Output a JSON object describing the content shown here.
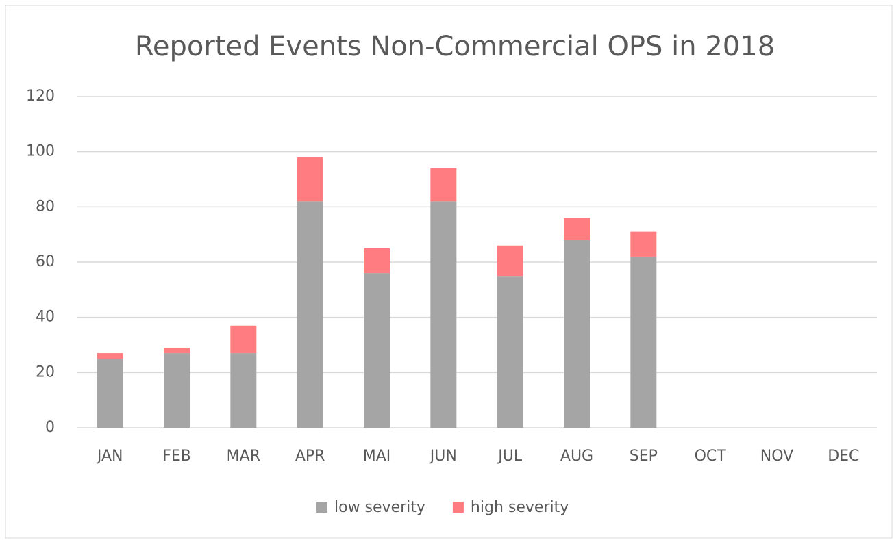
{
  "chart_data": {
    "type": "stacked_bar",
    "title": "Reported Events Non-Commercial OPS in 2018",
    "categories": [
      "JAN",
      "FEB",
      "MAR",
      "APR",
      "MAI",
      "JUN",
      "JUL",
      "AUG",
      "SEP",
      "OCT",
      "NOV",
      "DEC"
    ],
    "series": [
      {
        "name": "low severity",
        "color": "#a5a5a5",
        "values": [
          25,
          27,
          27,
          82,
          56,
          82,
          55,
          68,
          62,
          null,
          null,
          null
        ]
      },
      {
        "name": "high severity",
        "color": "#ff7c80",
        "values": [
          2,
          2,
          10,
          16,
          9,
          12,
          11,
          8,
          9,
          null,
          null,
          null
        ]
      }
    ],
    "ylim": [
      0,
      120
    ],
    "yticks": [
      0,
      20,
      40,
      60,
      80,
      100,
      120
    ],
    "grid": true,
    "legend": "bottom"
  }
}
